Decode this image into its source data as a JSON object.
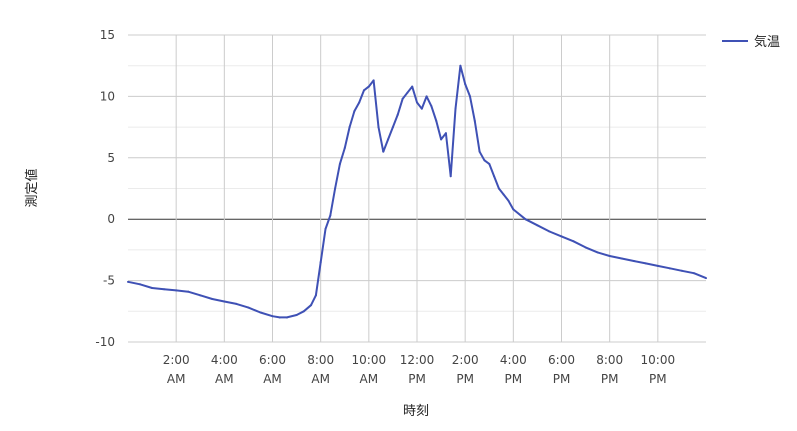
{
  "chart_data": {
    "type": "line",
    "xlabel": "時刻",
    "ylabel": "測定値",
    "x_unit": "hour of day (0–24)",
    "xlim": [
      0,
      24
    ],
    "ylim": [
      -10,
      15
    ],
    "x_ticks": [
      {
        "value": 2,
        "line1": "2:00",
        "line2": "AM"
      },
      {
        "value": 4,
        "line1": "4:00",
        "line2": "AM"
      },
      {
        "value": 6,
        "line1": "6:00",
        "line2": "AM"
      },
      {
        "value": 8,
        "line1": "8:00",
        "line2": "AM"
      },
      {
        "value": 10,
        "line1": "10:00",
        "line2": "AM"
      },
      {
        "value": 12,
        "line1": "12:00",
        "line2": "PM"
      },
      {
        "value": 14,
        "line1": "2:00",
        "line2": "PM"
      },
      {
        "value": 16,
        "line1": "4:00",
        "line2": "PM"
      },
      {
        "value": 18,
        "line1": "6:00",
        "line2": "PM"
      },
      {
        "value": 20,
        "line1": "8:00",
        "line2": "PM"
      },
      {
        "value": 22,
        "line1": "10:00",
        "line2": "PM"
      }
    ],
    "y_ticks": [
      15,
      10,
      5,
      0,
      -5,
      -10
    ],
    "grid": true,
    "legend": {
      "position": "top-right"
    },
    "series": [
      {
        "name": "気温",
        "color": "#3f51b5",
        "x": [
          0.0,
          0.5,
          1.0,
          1.5,
          2.0,
          2.5,
          3.0,
          3.5,
          4.0,
          4.5,
          5.0,
          5.5,
          6.0,
          6.3,
          6.6,
          7.0,
          7.3,
          7.6,
          7.8,
          8.0,
          8.2,
          8.4,
          8.6,
          8.8,
          9.0,
          9.2,
          9.4,
          9.6,
          9.8,
          10.0,
          10.2,
          10.4,
          10.6,
          10.8,
          11.0,
          11.2,
          11.4,
          11.6,
          11.8,
          12.0,
          12.2,
          12.4,
          12.6,
          12.8,
          13.0,
          13.2,
          13.4,
          13.6,
          13.8,
          14.0,
          14.2,
          14.4,
          14.6,
          14.8,
          15.0,
          15.2,
          15.4,
          15.6,
          15.8,
          16.0,
          16.5,
          17.0,
          17.5,
          18.0,
          18.5,
          19.0,
          19.5,
          20.0,
          20.5,
          21.0,
          21.5,
          22.0,
          22.5,
          23.0,
          23.5,
          24.0
        ],
        "values": [
          -5.1,
          -5.3,
          -5.6,
          -5.7,
          -5.8,
          -5.9,
          -6.2,
          -6.5,
          -6.7,
          -6.9,
          -7.2,
          -7.6,
          -7.9,
          -8.0,
          -8.0,
          -7.8,
          -7.5,
          -7.0,
          -6.2,
          -3.5,
          -0.8,
          0.3,
          2.5,
          4.5,
          5.8,
          7.5,
          8.8,
          9.5,
          10.5,
          10.8,
          11.3,
          7.5,
          5.5,
          6.5,
          7.5,
          8.5,
          9.8,
          10.3,
          10.8,
          9.5,
          9.0,
          10.0,
          9.2,
          8.0,
          6.5,
          7.0,
          3.5,
          9.0,
          12.5,
          11.0,
          10.0,
          8.0,
          5.5,
          4.8,
          4.5,
          3.5,
          2.5,
          2.0,
          1.5,
          0.8,
          0.0,
          -0.5,
          -1.0,
          -1.4,
          -1.8,
          -2.3,
          -2.7,
          -3.0,
          -3.2,
          -3.4,
          -3.6,
          -3.8,
          -4.0,
          -4.2,
          -4.4,
          -4.8
        ]
      }
    ]
  }
}
